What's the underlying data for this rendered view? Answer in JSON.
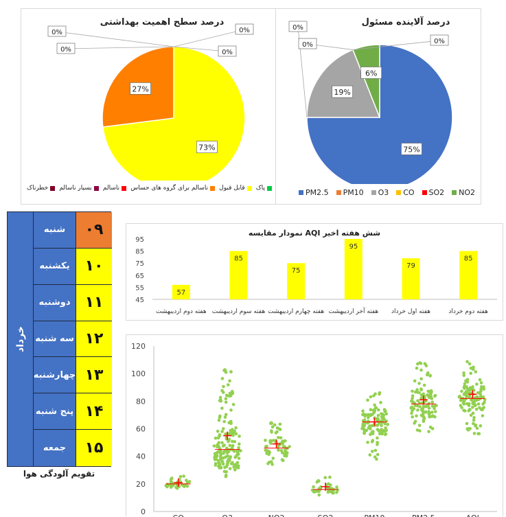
{
  "chart_data": [
    {
      "id": "health-pie",
      "type": "pie",
      "title": "درصد سطح اهمیت بهداشتی",
      "slices": [
        {
          "label": "پاک",
          "value": 0,
          "color": "#00CC44",
          "data_label": "0%"
        },
        {
          "label": "قابل قبول",
          "value": 73,
          "color": "#FFFF00",
          "data_label": "73%"
        },
        {
          "label": "ناسالم برای گروه های حساس",
          "value": 27,
          "color": "#FF7F00",
          "data_label": "27%"
        },
        {
          "label": "ناسالم",
          "value": 0,
          "color": "#FF0000",
          "data_label": "0%"
        },
        {
          "label": "بسیار ناسالم",
          "value": 0,
          "color": "#8B0045",
          "data_label": "0%"
        },
        {
          "label": "خطرناک",
          "value": 0,
          "color": "#7E0023",
          "data_label": "0%"
        }
      ],
      "legend_order": [
        "پاک",
        "قابل قبول",
        "ناسالم برای گروه های حساس",
        "ناسالم",
        "بسیار ناسالم",
        "خطرناک"
      ],
      "legend_placement": "bottom"
    },
    {
      "id": "pollutant-pie",
      "type": "pie",
      "title": "درصد آلاینده مسئول",
      "slices": [
        {
          "label": "PM2.5",
          "value": 75,
          "color": "#4472C4",
          "data_label": "75%"
        },
        {
          "label": "PM10",
          "value": 0,
          "color": "#ED7D31",
          "data_label": "0%"
        },
        {
          "label": "O3",
          "value": 19,
          "color": "#A5A5A5",
          "data_label": "19%"
        },
        {
          "label": "CO",
          "value": 0,
          "color": "#FFC000",
          "data_label": "0%"
        },
        {
          "label": "SO2",
          "value": 0,
          "color": "#FF0000",
          "data_label": "0%"
        },
        {
          "label": "NO2",
          "value": 6,
          "color": "#70AD47",
          "data_label": "6%"
        }
      ],
      "legend_placement": "bottom"
    },
    {
      "id": "weekly-aqi-bar",
      "type": "bar",
      "title": "نمودار مقایسه AQI شش هفته اخیر",
      "categories": [
        "هفته دوم اردیبهشت",
        "هفته سوم اردیبهشت",
        "هفته چهارم اردیبهشت",
        "هفته آخر اردیبهشت",
        "هفته اول خرداد",
        "هفته دوم خرداد"
      ],
      "values": [
        57,
        85,
        75,
        95,
        79,
        85
      ],
      "color": "#FFFF00",
      "ylim": [
        45,
        95
      ],
      "yticks": [
        45,
        55,
        65,
        75,
        85,
        95
      ],
      "grid": false
    },
    {
      "id": "distribution-scatter",
      "type": "scatter",
      "categories": [
        "CO",
        "O3",
        "NO2",
        "SO2",
        "PM10",
        "PM2.5",
        "AQI"
      ],
      "medians": [
        20,
        45,
        46,
        16,
        65,
        78,
        82
      ],
      "means": [
        21,
        55,
        49,
        18,
        65,
        81,
        85
      ],
      "ranges": [
        [
          15,
          26
        ],
        [
          24,
          104
        ],
        [
          34,
          67
        ],
        [
          12,
          25
        ],
        [
          38,
          90
        ],
        [
          56,
          110
        ],
        [
          56,
          110
        ]
      ],
      "ylim": [
        0,
        120
      ],
      "yticks": [
        0,
        20,
        40,
        60,
        80,
        100,
        120
      ],
      "point_color": "#92D050",
      "mean_marker_color": "#FF0000",
      "median_line_color": "#FF0000",
      "grid": false
    }
  ],
  "calendar": {
    "month": "خرداد",
    "caption": "تقویم آلودگی هوا",
    "rows": [
      {
        "day": "شنبه",
        "date": "۰۹",
        "color": "#ED7D31"
      },
      {
        "day": "یکشنبه",
        "date": "۱۰",
        "color": "#FFFF00"
      },
      {
        "day": "دوشنبه",
        "date": "۱۱",
        "color": "#FFFF00"
      },
      {
        "day": "سه شنبه",
        "date": "۱۲",
        "color": "#FFFF00"
      },
      {
        "day": "چهارشنبه",
        "date": "۱۳",
        "color": "#FFFF00"
      },
      {
        "day": "پنج شنبه",
        "date": "۱۴",
        "color": "#FFFF00"
      },
      {
        "day": "جمعه",
        "date": "۱۵",
        "color": "#FFFF00"
      }
    ]
  }
}
